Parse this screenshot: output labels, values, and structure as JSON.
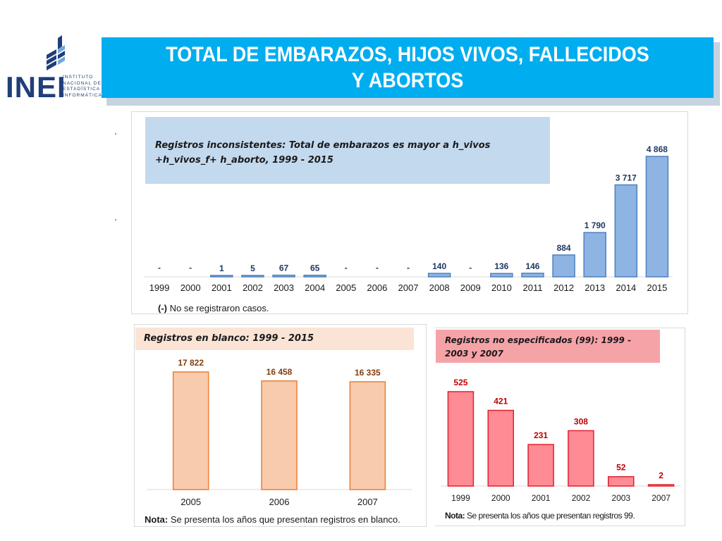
{
  "slide": {
    "title": "TOTAL DE EMBARAZOS, HIJOS VIVOS, FALLECIDOS Y ABORTOS",
    "logo": {
      "text": "INEI",
      "subtitle": "INSTITUTO\nNACIONAL DE\nESTADÍSTICA E\nINFORMÁTICA"
    }
  },
  "chart_data": [
    {
      "type": "bar",
      "title": "Registros inconsistentes: Total de embarazos es mayor a h_vivos +h_vivos_f+ h_aborto, 1999 - 2015",
      "categories": [
        "1999",
        "2000",
        "2001",
        "2002",
        "2003",
        "2004",
        "2005",
        "2006",
        "2007",
        "2008",
        "2009",
        "2010",
        "2011",
        "2012",
        "2013",
        "2014",
        "2015"
      ],
      "values": [
        0,
        0,
        1,
        5,
        67,
        65,
        0,
        0,
        0,
        140,
        0,
        136,
        146,
        884,
        1790,
        3717,
        4868
      ],
      "data_labels": [
        "-",
        "-",
        "1",
        "5",
        "67",
        "65",
        "-",
        "-",
        "-",
        "140",
        "-",
        "136",
        "146",
        "884",
        "1 790",
        "3 717",
        "4 868"
      ],
      "note_key": "(-)",
      "note_text": "No se registraron casos.",
      "ylim": [
        0,
        4868
      ],
      "grid": false,
      "bar_color": "#8db4e2",
      "bar_border": "#4f81bd",
      "label_color": "#1f3864"
    },
    {
      "type": "bar",
      "title": "Registros en blanco: 1999 - 2015",
      "categories": [
        "2005",
        "2006",
        "2007"
      ],
      "values": [
        17822,
        16458,
        16335
      ],
      "data_labels": [
        "17 822",
        "16 458",
        "16 335"
      ],
      "note_key": "Nota:",
      "note_text": "Se presenta los años que presentan registros en blanco.",
      "ylim": [
        0,
        17822
      ],
      "grid": false,
      "bar_color": "#f8cbad",
      "bar_border": "#ed7d31",
      "label_color": "#843c0c"
    },
    {
      "type": "bar",
      "title": "Registros no especificados (99): 1999 - 2003 y 2007",
      "categories": [
        "1999",
        "2000",
        "2001",
        "2002",
        "2003",
        "2007"
      ],
      "values": [
        525,
        421,
        231,
        308,
        52,
        2
      ],
      "data_labels": [
        "525",
        "421",
        "231",
        "308",
        "52",
        "2"
      ],
      "note_key": "Nota:",
      "note_text": "Se presenta los años que presentan registros 99.",
      "ylim": [
        0,
        525
      ],
      "grid": false,
      "bar_color": "#ff8b94",
      "bar_border": "#e0202e",
      "label_color": "#c00000"
    }
  ]
}
